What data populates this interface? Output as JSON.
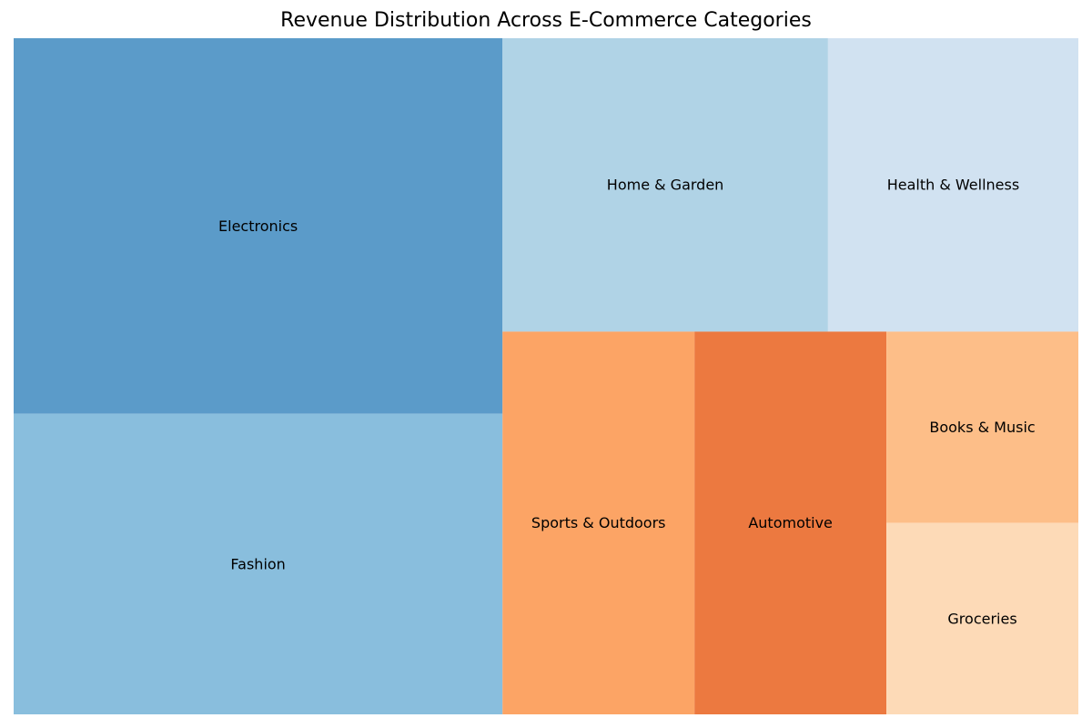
{
  "chart_data": {
    "type": "treemap",
    "title": "Revenue Distribution Across E-Commerce Categories",
    "categories": [
      {
        "name": "Electronics",
        "value": 0.25,
        "color": "#5b9bc9"
      },
      {
        "name": "Fashion",
        "value": 0.2,
        "color": "#89bedd"
      },
      {
        "name": "Home & Garden",
        "value": 0.13,
        "color": "#b0d3e6"
      },
      {
        "name": "Health & Wellness",
        "value": 0.1,
        "color": "#d1e2f1"
      },
      {
        "name": "Sports & Outdoors",
        "value": 0.1,
        "color": "#fca465"
      },
      {
        "name": "Automotive",
        "value": 0.1,
        "color": "#ec7940"
      },
      {
        "name": "Books & Music",
        "value": 0.05,
        "color": "#fdbe88"
      },
      {
        "name": "Groceries",
        "value": 0.05,
        "color": "#fddab7"
      }
    ]
  }
}
